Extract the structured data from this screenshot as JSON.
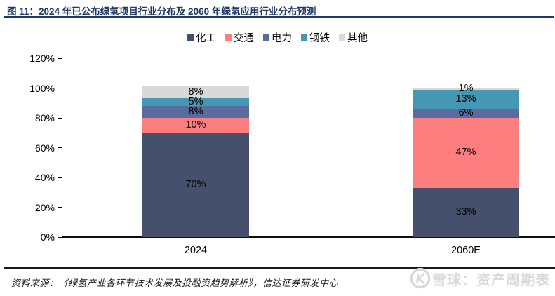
{
  "header": {
    "title": "图 11：2024 年已公布绿氢项目行业分布及 2060 年绿氢应用行业分布预测"
  },
  "chart_data": {
    "type": "bar",
    "stacked": true,
    "categories": [
      "2024",
      "2060E"
    ],
    "series": [
      {
        "name": "化工",
        "color": "#44506c",
        "values": [
          70,
          33
        ]
      },
      {
        "name": "交通",
        "color": "#fc7e7e",
        "values": [
          10,
          47
        ]
      },
      {
        "name": "电力",
        "color": "#5a6b9e",
        "values": [
          8,
          6
        ]
      },
      {
        "name": "钢铁",
        "color": "#4498b4",
        "values": [
          5,
          13
        ]
      },
      {
        "name": "其他",
        "color": "#d9d9d9",
        "values": [
          8,
          1
        ]
      }
    ],
    "title": "",
    "xlabel": "",
    "ylabel": "",
    "ylim": [
      0,
      120
    ],
    "ytick_step": 20,
    "ytick_labels": [
      "0%",
      "20%",
      "40%",
      "60%",
      "80%",
      "100%",
      "120%"
    ],
    "legend_position": "top",
    "grid": false,
    "value_suffix": "%"
  },
  "footer": {
    "source": "资料来源：《绿氢产业各环节技术发展及投融资趋势解析》，信达证券研发中心"
  },
  "watermark": {
    "logo": "xueqiu-logo",
    "text": "雪球：资产周期表"
  },
  "colors": {
    "title_navy": "#1f3864",
    "axis_black": "#000000",
    "watermark_gray": "#d9d9d9"
  }
}
